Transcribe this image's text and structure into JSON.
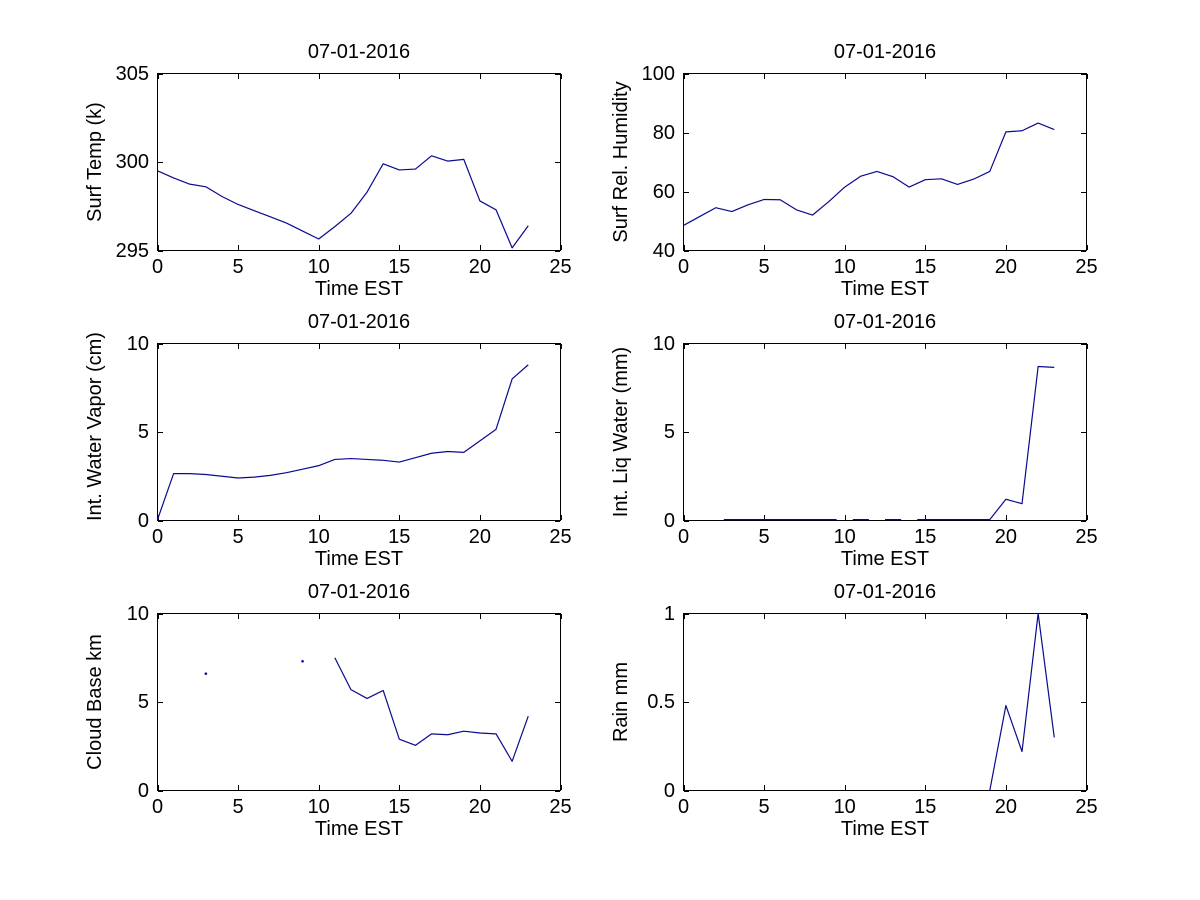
{
  "figure": {
    "background": "#ffffff",
    "line_color": "#0a0a8f",
    "axis_color": "#000000",
    "text_color": "#000000",
    "shared_title": "07-01-2016",
    "shared_xlabel": "Time EST"
  },
  "chart_data": [
    {
      "type": "line",
      "title": "07-01-2016",
      "xlabel": "Time EST",
      "ylabel": "Surf Temp (k)",
      "xlim": [
        0,
        25
      ],
      "ylim": [
        295,
        305
      ],
      "xticks": [
        0,
        5,
        10,
        15,
        20,
        25
      ],
      "yticks": [
        295,
        300,
        305
      ],
      "grid": false,
      "legend": null,
      "segments": [
        [
          [
            0,
            299.5
          ],
          [
            1,
            299.1
          ],
          [
            2,
            298.75
          ],
          [
            3,
            298.6
          ],
          [
            4,
            298.05
          ],
          [
            5,
            297.6
          ],
          [
            6,
            297.25
          ],
          [
            7,
            296.9
          ],
          [
            8,
            296.55
          ],
          [
            9,
            296.1
          ],
          [
            10,
            295.65
          ],
          [
            11,
            296.35
          ],
          [
            12,
            297.1
          ],
          [
            13,
            298.3
          ],
          [
            14,
            299.9
          ],
          [
            15,
            299.55
          ],
          [
            16,
            299.6
          ],
          [
            17,
            300.35
          ],
          [
            18,
            300.05
          ],
          [
            19,
            300.15
          ],
          [
            20,
            297.8
          ],
          [
            21,
            297.3
          ],
          [
            22,
            295.15
          ],
          [
            23,
            296.4
          ]
        ]
      ],
      "points": []
    },
    {
      "type": "line",
      "title": "07-01-2016",
      "xlabel": "Time EST",
      "ylabel": "Surf Rel. Humidity",
      "xlim": [
        0,
        25
      ],
      "ylim": [
        40,
        100
      ],
      "xticks": [
        0,
        5,
        10,
        15,
        20,
        25
      ],
      "yticks": [
        40,
        60,
        80,
        100
      ],
      "grid": false,
      "legend": null,
      "segments": [
        [
          [
            0,
            48.5
          ],
          [
            1,
            51.5
          ],
          [
            2,
            54.5
          ],
          [
            3,
            53.2
          ],
          [
            4,
            55.5
          ],
          [
            5,
            57.3
          ],
          [
            6,
            57.2
          ],
          [
            7,
            53.8
          ],
          [
            8,
            52
          ],
          [
            9,
            56.5
          ],
          [
            10,
            61.5
          ],
          [
            11,
            65.2
          ],
          [
            12,
            66.8
          ],
          [
            13,
            65
          ],
          [
            14,
            61.5
          ],
          [
            15,
            64
          ],
          [
            16,
            64.3
          ],
          [
            17,
            62.4
          ],
          [
            18,
            64.2
          ],
          [
            19,
            66.8
          ],
          [
            20,
            80.2
          ],
          [
            21,
            80.6
          ],
          [
            22,
            83.2
          ],
          [
            23,
            81
          ]
        ]
      ],
      "points": []
    },
    {
      "type": "line",
      "title": "07-01-2016",
      "xlabel": "Time EST",
      "ylabel": "Int. Water Vapor (cm)",
      "xlim": [
        0,
        25
      ],
      "ylim": [
        0,
        10
      ],
      "xticks": [
        0,
        5,
        10,
        15,
        20,
        25
      ],
      "yticks": [
        0,
        5,
        10
      ],
      "grid": false,
      "legend": null,
      "segments": [
        [
          [
            0,
            0.05
          ],
          [
            1,
            2.65
          ],
          [
            2,
            2.65
          ],
          [
            3,
            2.6
          ],
          [
            4,
            2.5
          ],
          [
            5,
            2.4
          ],
          [
            6,
            2.45
          ],
          [
            7,
            2.55
          ],
          [
            8,
            2.7
          ],
          [
            9,
            2.9
          ],
          [
            10,
            3.1
          ],
          [
            11,
            3.45
          ],
          [
            12,
            3.5
          ],
          [
            13,
            3.45
          ],
          [
            14,
            3.4
          ],
          [
            15,
            3.3
          ],
          [
            16,
            3.55
          ],
          [
            17,
            3.8
          ],
          [
            18,
            3.9
          ],
          [
            19,
            3.85
          ],
          [
            20,
            4.5
          ],
          [
            21,
            5.15
          ],
          [
            22,
            8.0
          ],
          [
            23,
            8.8
          ]
        ]
      ],
      "points": []
    },
    {
      "type": "line",
      "title": "07-01-2016",
      "xlabel": "Time EST",
      "ylabel": "Int. Liq Water (mm)",
      "xlim": [
        0,
        25
      ],
      "ylim": [
        0,
        10
      ],
      "xticks": [
        0,
        5,
        10,
        15,
        20,
        25
      ],
      "yticks": [
        0,
        5,
        10
      ],
      "grid": false,
      "legend": null,
      "segments": [
        [
          [
            2.5,
            0.05
          ],
          [
            9.5,
            0.05
          ]
        ],
        [
          [
            10.5,
            0.05
          ],
          [
            11.5,
            0.05
          ]
        ],
        [
          [
            12.5,
            0.05
          ],
          [
            13.5,
            0.05
          ]
        ],
        [
          [
            14.5,
            0.05
          ],
          [
            19,
            0.05
          ],
          [
            20,
            1.2
          ],
          [
            21,
            0.95
          ],
          [
            22,
            8.7
          ],
          [
            23,
            8.65
          ]
        ]
      ],
      "points": []
    },
    {
      "type": "line",
      "title": "07-01-2016",
      "xlabel": "Time EST",
      "ylabel": "Cloud Base km",
      "xlim": [
        0,
        25
      ],
      "ylim": [
        0,
        10
      ],
      "xticks": [
        0,
        5,
        10,
        15,
        20,
        25
      ],
      "yticks": [
        0,
        5,
        10
      ],
      "grid": false,
      "legend": null,
      "segments": [
        [
          [
            11,
            7.5
          ],
          [
            12,
            5.7
          ],
          [
            13,
            5.2
          ],
          [
            14,
            5.65
          ],
          [
            15,
            2.9
          ],
          [
            16,
            2.55
          ],
          [
            17,
            3.2
          ],
          [
            18,
            3.15
          ],
          [
            19,
            3.35
          ],
          [
            20,
            3.25
          ],
          [
            21,
            3.2
          ],
          [
            22,
            1.65
          ],
          [
            23,
            4.2
          ]
        ]
      ],
      "points": [
        [
          3,
          6.6
        ],
        [
          9,
          7.3
        ]
      ]
    },
    {
      "type": "line",
      "title": "07-01-2016",
      "xlabel": "Time EST",
      "ylabel": "Rain mm",
      "xlim": [
        0,
        25
      ],
      "ylim": [
        0,
        1
      ],
      "xticks": [
        0,
        5,
        10,
        15,
        20,
        25
      ],
      "yticks": [
        0,
        0.5,
        1
      ],
      "grid": false,
      "legend": null,
      "segments": [
        [
          [
            19,
            0
          ],
          [
            20,
            0.48
          ],
          [
            21,
            0.22
          ],
          [
            22,
            1.0
          ],
          [
            23,
            0.3
          ]
        ]
      ],
      "points": []
    }
  ]
}
